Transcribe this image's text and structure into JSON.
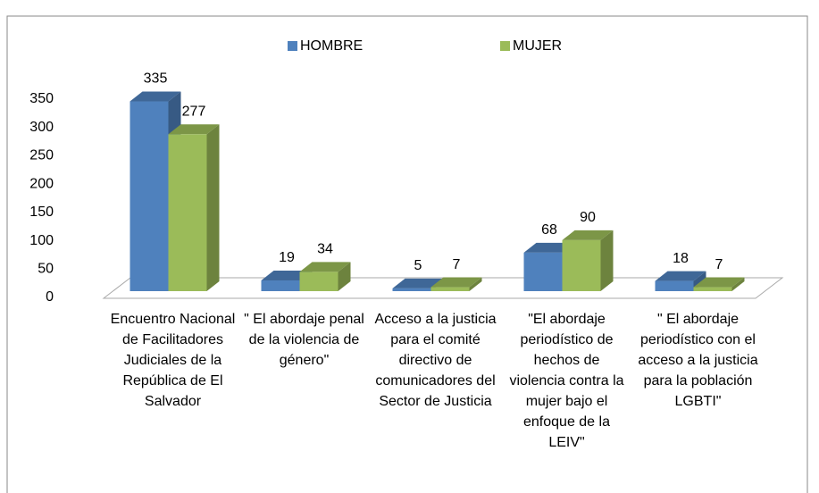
{
  "chart_data": {
    "type": "bar3d",
    "categories": [
      "Encuentro Nacional de Facilitadores Judiciales de la República de El Salvador",
      "\" El abordaje penal de la violencia de género\"",
      "Acceso a la justicia para el comité directivo de comunicadores del Sector de Justicia",
      "\"El abordaje periodístico de hechos de violencia contra la mujer bajo el enfoque de la LEIV\"",
      "\" El abordaje periodístico con el acceso a la justicia para la población LGBTI\""
    ],
    "series": [
      {
        "name": "HOMBRE",
        "color": "#4f81bd",
        "values": [
          335,
          19,
          5,
          68,
          18
        ]
      },
      {
        "name": "MUJER",
        "color": "#9bbb59",
        "values": [
          277,
          34,
          7,
          90,
          7
        ]
      }
    ],
    "ylim": [
      0,
      350
    ],
    "yticks": [
      0,
      50,
      100,
      150,
      200,
      250,
      300,
      350
    ],
    "legend": "top"
  }
}
